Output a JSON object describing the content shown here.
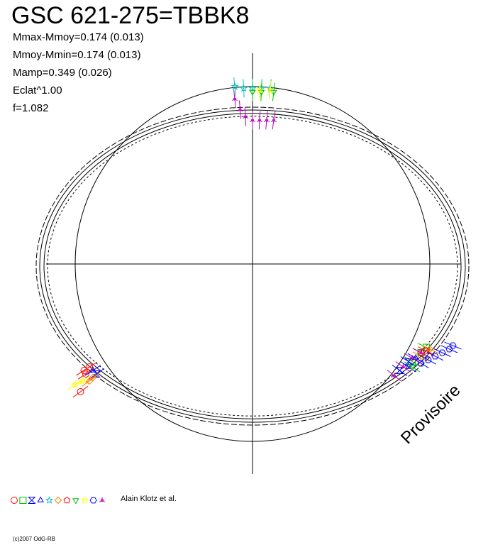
{
  "chart_data": {
    "type": "scatter",
    "title": "GSC 621-275=TBBK8",
    "stats": [
      "Mmax-Mmoy=0.174 (0.013)",
      "Mmoy-Mmin=0.174 (0.013)",
      "Mamp=0.349 (0.026)",
      "Eclat^1.00",
      "f=1.082"
    ],
    "xlim": [
      -1.2,
      1.2
    ],
    "ylim": [
      -1.2,
      1.2
    ],
    "grid": false,
    "reference_circle": {
      "radius": 1.0
    },
    "ellipse_model": {
      "a": 1.2,
      "b": 0.88
    },
    "series": [
      {
        "marker": "circle",
        "color": "#ff0000",
        "points": [
          [
            -0.97,
            -0.72
          ],
          [
            -0.95,
            -0.6
          ],
          [
            -0.92,
            -0.58
          ],
          [
            -0.94,
            -0.62
          ]
        ]
      },
      {
        "marker": "square",
        "color": "#00c000",
        "points": [
          [
            0.9,
            -0.55
          ],
          [
            0.95,
            -0.5
          ],
          [
            0.98,
            -0.47
          ]
        ]
      },
      {
        "marker": "hourglass",
        "color": "#0000ff",
        "points": [
          [
            -0.88,
            -0.62
          ],
          [
            0.83,
            -0.6
          ],
          [
            0.88,
            -0.55
          ]
        ]
      },
      {
        "marker": "triangle",
        "color": "#0000ff",
        "points": [
          [
            0.88,
            -0.58
          ],
          [
            0.92,
            -0.53
          ],
          [
            -0.9,
            -0.6
          ]
        ]
      },
      {
        "marker": "star",
        "color": "#00c0c0",
        "points": [
          [
            -0.1,
            1.0
          ],
          [
            -0.05,
            0.99
          ],
          [
            0.0,
            0.99
          ],
          [
            0.05,
            0.99
          ],
          [
            0.1,
            0.99
          ]
        ]
      },
      {
        "marker": "diamond",
        "color": "#ff8000",
        "points": [
          [
            -0.92,
            -0.66
          ],
          [
            -0.9,
            -0.64
          ],
          [
            0.95,
            -0.52
          ],
          [
            1.0,
            -0.48
          ]
        ]
      },
      {
        "marker": "pentagon",
        "color": "#ff0000",
        "points": [
          [
            0.95,
            -0.5
          ],
          [
            0.98,
            -0.49
          ]
        ]
      },
      {
        "marker": "triangle-down",
        "color": "#00c000",
        "points": [
          [
            0.0,
            0.97
          ],
          [
            0.05,
            0.97
          ],
          [
            0.12,
            0.97
          ],
          [
            0.9,
            -0.58
          ]
        ]
      },
      {
        "marker": "star",
        "color": "#ffff00",
        "points": [
          [
            -0.96,
            -0.66
          ],
          [
            -1.0,
            -0.68
          ],
          [
            0.1,
            0.98
          ],
          [
            0.04,
            0.98
          ]
        ]
      },
      {
        "marker": "hexagon",
        "color": "#0000ff",
        "points": [
          [
            0.95,
            -0.56
          ],
          [
            0.99,
            -0.54
          ],
          [
            1.03,
            -0.52
          ],
          [
            1.07,
            -0.5
          ],
          [
            1.11,
            -0.48
          ],
          [
            1.13,
            -0.46
          ]
        ]
      },
      {
        "marker": "asterisk",
        "color": "#c000c0",
        "points": [
          [
            -0.1,
            0.93
          ],
          [
            -0.07,
            0.87
          ],
          [
            -0.04,
            0.83
          ],
          [
            0.0,
            0.81
          ],
          [
            0.04,
            0.81
          ],
          [
            0.08,
            0.81
          ],
          [
            0.12,
            0.81
          ],
          [
            0.8,
            -0.63
          ],
          [
            0.85,
            -0.58
          ],
          [
            0.9,
            -0.53
          ],
          [
            0.95,
            -0.5
          ]
        ]
      }
    ],
    "legend": {
      "markers": [
        "circle",
        "square",
        "hourglass",
        "triangle",
        "star",
        "diamond",
        "pentagon",
        "triangle-down",
        "star",
        "hexagon",
        "asterisk"
      ],
      "colors": [
        "#ff0000",
        "#00c000",
        "#0000ff",
        "#0000ff",
        "#00c0c0",
        "#ff8000",
        "#ff0000",
        "#00c000",
        "#ffff00",
        "#0000ff",
        "#c000c0"
      ],
      "text": "Alain Klotz et al."
    },
    "watermark": "Provisoire",
    "copyright": "(c)2007 OdG-RB"
  }
}
